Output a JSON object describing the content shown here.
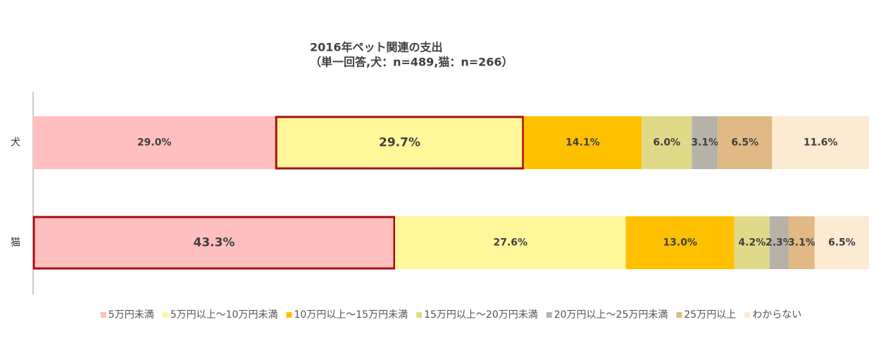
{
  "chart_data": {
    "type": "stacked-bar-horizontal",
    "title": "2016年ペット関連の支出",
    "subtitle": "（単一回答,犬：n=489,猫：n=266）",
    "categories": [
      "犬",
      "猫"
    ],
    "xlim": [
      0,
      100
    ],
    "legend": "bottom",
    "series": [
      {
        "name": "5万円未満",
        "color": "#ffbfbf",
        "values": [
          29.0,
          43.3
        ],
        "value_labels": [
          "29.0%",
          "43.3%"
        ]
      },
      {
        "name": "5万円以上～10万円未満",
        "color": "#fff79a",
        "values": [
          29.7,
          27.6
        ],
        "value_labels": [
          "29.7%",
          "27.6%"
        ]
      },
      {
        "name": "10万円以上～15万円未満",
        "color": "#ffc000",
        "values": [
          14.1,
          13.0
        ],
        "value_labels": [
          "14.1%",
          "13.0%"
        ]
      },
      {
        "name": "15万円以上～20万円未満",
        "color": "#e0d987",
        "values": [
          6.0,
          4.2
        ],
        "value_labels": [
          "6.0%",
          "4.2%"
        ]
      },
      {
        "name": "20万円以上～25万円未満",
        "color": "#b7b2a8",
        "values": [
          3.1,
          2.3
        ],
        "value_labels": [
          "3.1%",
          "2.3%"
        ]
      },
      {
        "name": "25万円以上",
        "color": "#e0b984",
        "values": [
          6.5,
          3.1
        ],
        "value_labels": [
          "6.5%",
          "3.1%"
        ]
      },
      {
        "name": "わからない",
        "color": "#fdead3",
        "values": [
          11.6,
          6.5
        ],
        "value_labels": [
          "11.6%",
          "6.5%"
        ]
      }
    ],
    "highlights": [
      {
        "series": 1,
        "category": 0,
        "color": "#a50f15"
      },
      {
        "series": 0,
        "category": 1,
        "color": "#a50f15"
      }
    ]
  }
}
